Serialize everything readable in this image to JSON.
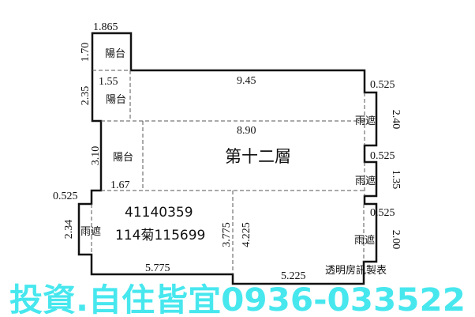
{
  "floor_title": "第十二層",
  "ids": [
    "41140359",
    "114菊115699"
  ],
  "rooms": {
    "balcony": "陽台",
    "canopy": "雨遮"
  },
  "dimensions": {
    "top_balcony_width": "1.865",
    "top_balcony_height": "1.70",
    "balcony2_height": "2.35",
    "balcony2_width": "1.55",
    "top_width": "9.45",
    "mid_width": "8.90",
    "left_balcony_height": "3.10",
    "left_balcony_width": "1.67",
    "left_canopy_depth": "0.525",
    "left_canopy_height": "2.34",
    "bottom_left_width": "5.775",
    "inner_height_1": "3.775",
    "inner_height_2": "4.225",
    "bottom_right_width": "5.225",
    "right_canopy1_depth": "0.525",
    "right_canopy1_height": "2.40",
    "right_canopy2_depth": "0.525",
    "right_canopy2_height": "1.35",
    "right_canopy3_depth": "0.525",
    "right_canopy3_height": "2.00"
  },
  "credit": "透明房訊製表",
  "watermark": "投資.自住皆宜0936-033522",
  "colors": {
    "outline": "#111111",
    "watermark": "#3ee6ee"
  }
}
